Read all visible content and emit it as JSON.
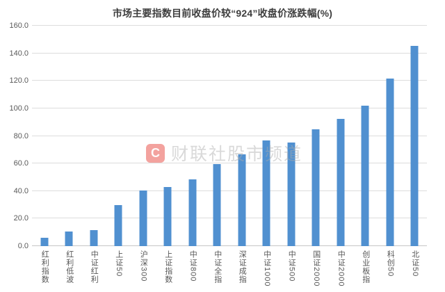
{
  "chart_data": {
    "type": "bar",
    "title": "市场主要指数目前收盘价较“924”收盘价涨跌幅(%)",
    "categories": [
      "红利指数",
      "红利低波",
      "中证红利",
      "上证50",
      "沪深300",
      "上证指数",
      "中证800",
      "中证全指",
      "深证成指",
      "中证1000",
      "中证500",
      "国证2000",
      "中证2000",
      "创业板指",
      "科创50",
      "北证50"
    ],
    "values": [
      6.0,
      10.4,
      11.6,
      29.8,
      40.2,
      42.8,
      48.7,
      59.5,
      66.5,
      76.5,
      75.3,
      84.8,
      92.3,
      101.8,
      121.8,
      145.3
    ],
    "ylabel": "",
    "xlabel": "",
    "ylim": [
      0,
      160
    ],
    "yticks": [
      "0.0",
      "20.0",
      "40.0",
      "60.0",
      "80.0",
      "100.0",
      "120.0",
      "140.0",
      "160.0"
    ],
    "ytick_values": [
      0,
      20,
      40,
      60,
      80,
      100,
      120,
      140,
      160
    ],
    "grid": "horizontal",
    "legend_position": "none",
    "bar_color": "#5090d0",
    "gridline_color": "#dcdcdc"
  },
  "watermark": {
    "logo_letter": "C",
    "text": "财联社股市频道"
  }
}
